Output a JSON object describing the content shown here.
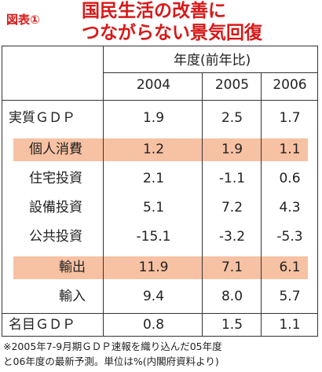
{
  "header": {
    "figure_label": "図表①",
    "title_line1": "国民生活の改善に",
    "title_line2": "つながらない景気回復"
  },
  "table": {
    "group_header": "年度(前年比)",
    "years": [
      "2004",
      "2005",
      "2006"
    ],
    "rows": [
      {
        "label": "実質ＧＤＰ",
        "values": [
          "1.9",
          "2.5",
          "1.7"
        ],
        "highlight": false
      },
      {
        "label": "個人消費",
        "values": [
          "1.2",
          "1.9",
          "1.1"
        ],
        "highlight": true
      },
      {
        "label": "住宅投資",
        "values": [
          "2.1",
          "-1.1",
          "0.6"
        ],
        "highlight": false
      },
      {
        "label": "設備投資",
        "values": [
          "5.1",
          "7.2",
          "4.3"
        ],
        "highlight": false
      },
      {
        "label": "公共投資",
        "values": [
          "-15.1",
          "-3.2",
          "-5.3"
        ],
        "highlight": false
      },
      {
        "label": "輸出",
        "values": [
          "11.9",
          "7.1",
          "6.1"
        ],
        "highlight": true
      },
      {
        "label": "輸入",
        "values": [
          "9.4",
          "8.0",
          "5.7"
        ],
        "highlight": false
      },
      {
        "label": "名目ＧＤＰ",
        "values": [
          "0.8",
          "1.5",
          "1.1"
        ],
        "highlight": false
      }
    ]
  },
  "footnote": {
    "line1": "※2005年7-9月期ＧＤＰ速報を織り込んだ05年度",
    "line2": "と06年度の最新予測。単位は%(内閣府資料より)"
  },
  "colors": {
    "title": "#d81818",
    "highlight": "#f7c1a3"
  }
}
